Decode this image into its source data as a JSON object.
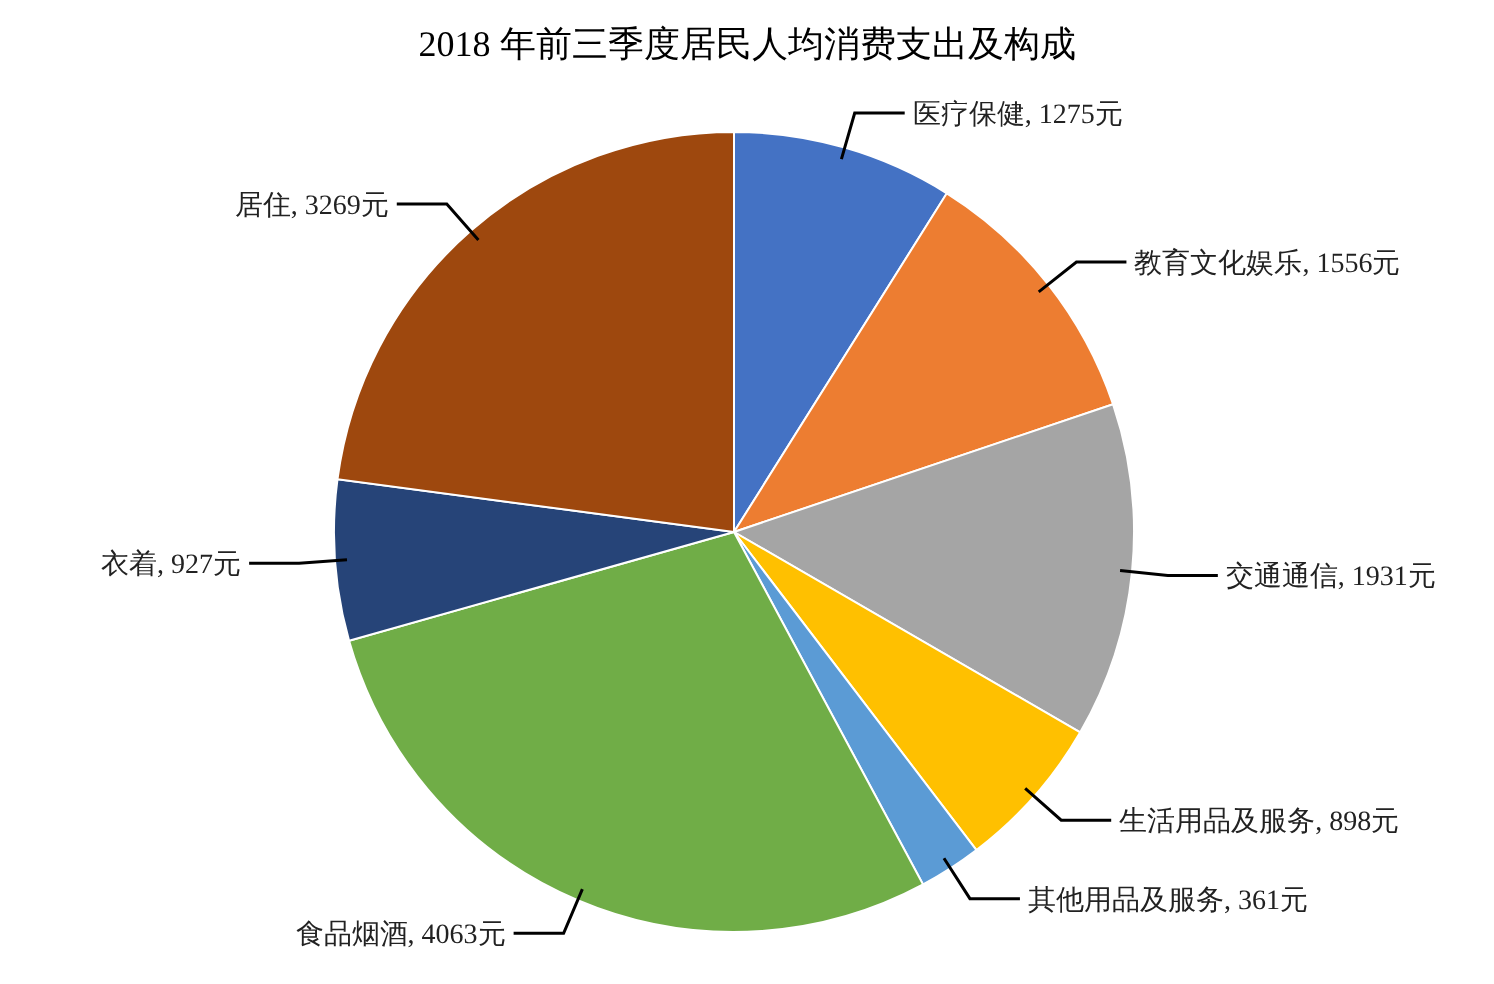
{
  "chart_data": {
    "type": "pie",
    "title": "2018 年前三季度居民人均消费支出及构成",
    "categories": [
      "医疗保健",
      "教育文化娱乐",
      "交通通信",
      "生活用品及服务",
      "其他用品及服务",
      "食品烟酒",
      "衣着",
      "居住"
    ],
    "values": [
      1275,
      1556,
      1931,
      898,
      361,
      4063,
      927,
      3269
    ],
    "value_labels": [
      "1275元",
      "1556元",
      "1931元",
      "898元",
      "361元",
      "4063元",
      "927元",
      "3269元"
    ],
    "colors": [
      "#4472c4",
      "#ed7d31",
      "#a5a5a5",
      "#ffc000",
      "#5b9bd5",
      "#70ad47",
      "#264478",
      "#9e480e"
    ],
    "legend": false
  }
}
